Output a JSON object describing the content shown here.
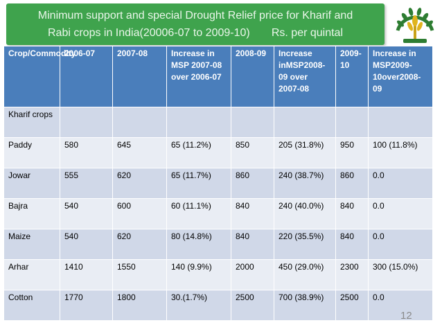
{
  "title": {
    "line1": "Minimum support and special Drought Relief price for Kharif and",
    "line2": "Rabi crops in India(20006-07 to 2009-10)       Rs. per quintal"
  },
  "colors": {
    "title_bg": "#3fa34d",
    "header_bg": "#4a7ebb",
    "row_odd": "#d0d8e8",
    "row_even": "#e9edf4"
  },
  "logo_icon": "wheat-emblem-icon",
  "table": {
    "headers": [
      "Crop/Commodity",
      "2006-07",
      "2007-08",
      "Increase in MSP 2007-08 over 2006-07",
      "2008-09",
      "Increase inMSP2008-09 over 2007-08",
      "2009-10",
      "Increase in MSP2009-10over2008-09"
    ],
    "rows": [
      [
        "Kharif crops",
        "",
        "",
        "",
        "",
        "",
        "",
        ""
      ],
      [
        "Paddy",
        "580",
        "645",
        "65 (11.2%)",
        "850",
        "205 (31.8%)",
        "950",
        "100 (11.8%)"
      ],
      [
        "Jowar",
        "555",
        "620",
        "65 (11.7%)",
        "860",
        "240 (38.7%)",
        "860",
        "0.0"
      ],
      [
        "Bajra",
        "540",
        "600",
        "60 (11.1%)",
        "840",
        "240 (40.0%)",
        "840",
        "0.0"
      ],
      [
        "Maize",
        "540",
        "620",
        "80 (14.8%)",
        "840",
        "220 (35.5%)",
        "840",
        "0.0"
      ],
      [
        "Arhar",
        "1410",
        "1550",
        "140 (9.9%)",
        "2000",
        "450 (29.0%)",
        "2300",
        "300 (15.0%)"
      ],
      [
        "Cotton",
        "1770",
        "1800",
        "30.(1.7%)",
        "2500",
        "700 (38.9%)",
        "2500",
        "0.0"
      ]
    ]
  },
  "page_number": "12"
}
